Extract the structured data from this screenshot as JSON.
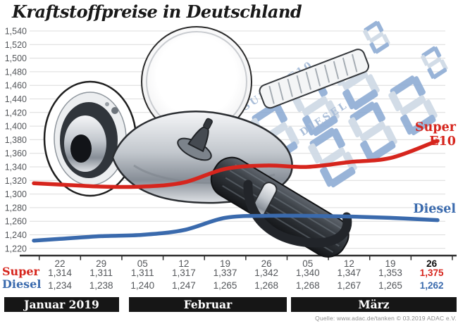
{
  "title": "Kraftstoffpreise in Deutschland",
  "source": "Quelle: www.adac.de/tanken   © 03.2019  ADAC e.V.",
  "watermark": {
    "label1": "SUPER E10",
    "label2": "DIESEL"
  },
  "chart_data": {
    "type": "line",
    "title": "Kraftstoffpreise in Deutschland",
    "grid": true,
    "y_min": 1220,
    "y_max": 1540,
    "y_step": 20,
    "y_tick_labels": [
      "1,220",
      "1,240",
      "1,260",
      "1,280",
      "1,300",
      "1,320",
      "1,340",
      "1,360",
      "1,380",
      "1,400",
      "1,420",
      "1,440",
      "1,460",
      "1,480",
      "1,500",
      "1,520",
      "1,540"
    ],
    "x_tick_labels": [
      "22",
      "29",
      "05",
      "12",
      "19",
      "26",
      "05",
      "12",
      "19",
      "26"
    ],
    "highlight_last_column": true,
    "months": [
      {
        "label": "Januar 2019",
        "columns": 2
      },
      {
        "label": "Februar",
        "columns": 4
      },
      {
        "label": "März",
        "columns": 4
      }
    ],
    "series": [
      {
        "name": "Super",
        "label_lines": [
          "Super",
          "E10"
        ],
        "color": "#d6251d",
        "values": [
          1314,
          1311,
          1311,
          1317,
          1337,
          1342,
          1340,
          1347,
          1353,
          1375
        ],
        "display_values": [
          "1,314",
          "1,311",
          "1,311",
          "1,317",
          "1,337",
          "1,342",
          "1,340",
          "1,347",
          "1,353",
          "1,375"
        ]
      },
      {
        "name": "Diesel",
        "label_lines": [
          "Diesel"
        ],
        "color": "#3a6aad",
        "values": [
          1234,
          1238,
          1240,
          1247,
          1265,
          1268,
          1268,
          1267,
          1265,
          1262
        ],
        "display_values": [
          "1,234",
          "1,238",
          "1,240",
          "1,247",
          "1,265",
          "1,268",
          "1,268",
          "1,267",
          "1,265",
          "1,262"
        ]
      }
    ],
    "legend_position": "line-end-labels-right"
  },
  "colors": {
    "super": "#d6251d",
    "diesel": "#3a6aad",
    "grid": "#dcdcdc",
    "axis": "#2e2e2e",
    "tick_text": "#54575b",
    "band_bg": "#161616",
    "band_text": "#ffffff",
    "title": "#191919",
    "source_text": "#8d8d8d",
    "watermark_light": "#cfdae6",
    "watermark_dark": "#91aed5",
    "watermark_label": "#a3b9d6"
  }
}
